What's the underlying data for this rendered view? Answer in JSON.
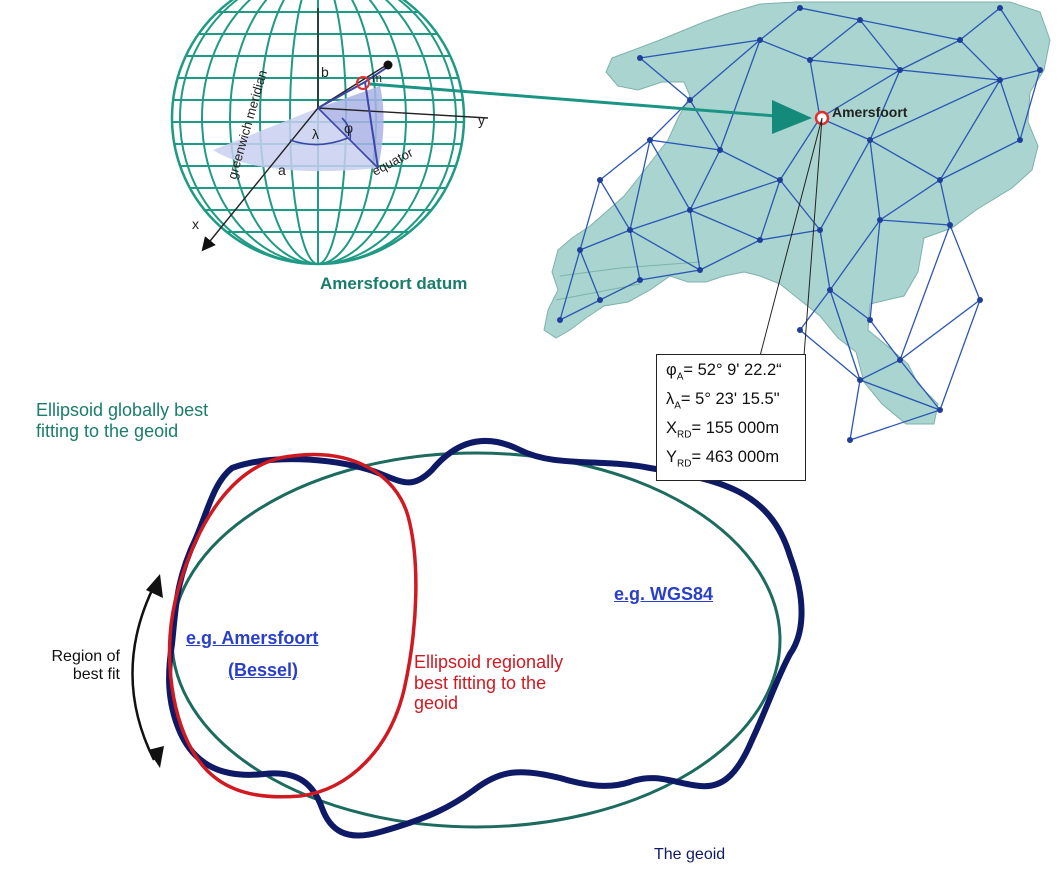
{
  "globe": {
    "meridian_label": "greenwich meridian",
    "equator_label": "equator",
    "axis_x": "x",
    "axis_y": "y",
    "axis_a": "a",
    "axis_b": "b",
    "angle_lambda": "λ",
    "angle_phi": "φ",
    "point_label": "m",
    "caption": "Amersfoort datum"
  },
  "map": {
    "point_label": "Amersfoort"
  },
  "coords": [
    {
      "symbol": "φ",
      "sub": "A",
      "value": "= 52° 9' 22.2“"
    },
    {
      "symbol": "λ",
      "sub": "A",
      "value": "= 5° 23' 15.5\""
    },
    {
      "symbol": "X",
      "sub": "RD",
      "value": "= 155 000m"
    },
    {
      "symbol": "Y",
      "sub": "RD",
      "value": "= 463 000m"
    }
  ],
  "ellipse_diagram": {
    "global_label_line1": "Ellipsoid globally best",
    "global_label_line2": "fitting to the geoid",
    "regional_label_line1": "Ellipsoid regionally",
    "regional_label_line2": "best fitting to the",
    "regional_label_line3": "geoid",
    "region_label_line1": "Region of",
    "region_label_line2": "best fit",
    "amersfoort_link": "e.g. Amersfoort",
    "bessel_link": "(Bessel)",
    "wgs_link": "e.g. WGS84",
    "geoid_label": "The geoid"
  },
  "colors": {
    "teal": "#1a7d6c",
    "map_fill": "#a9d4cf",
    "network": "#2b56b5",
    "red": "#d01a22",
    "navy": "#0e1a66",
    "green_ellipse": "#1d6b5e",
    "link_blue": "#2a3fc8"
  }
}
